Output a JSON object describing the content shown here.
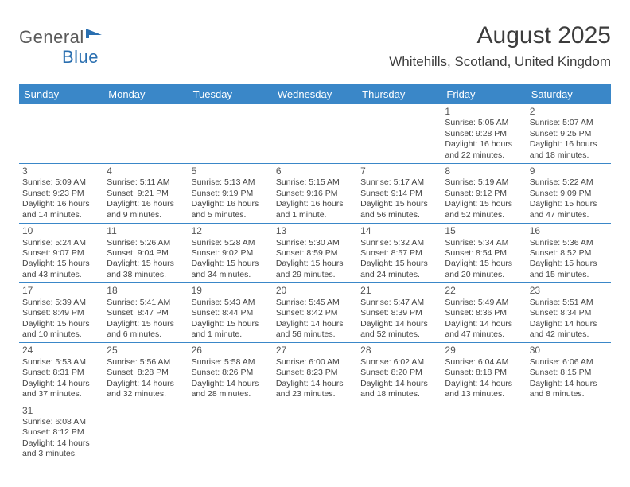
{
  "logo": {
    "text1": "General",
    "text2": "Blue",
    "icon_color": "#2a6fb0"
  },
  "title": "August 2025",
  "location": "Whitehills, Scotland, United Kingdom",
  "header_bg": "#3a87c8",
  "header_text_color": "#ffffff",
  "grid_line_color": "#3a87c8",
  "text_color": "#444444",
  "daynum_color": "#555555",
  "cell_fontsize": 10.5,
  "weekdays": [
    "Sunday",
    "Monday",
    "Tuesday",
    "Wednesday",
    "Thursday",
    "Friday",
    "Saturday"
  ],
  "weeks": [
    [
      null,
      null,
      null,
      null,
      null,
      {
        "n": "1",
        "sr": "Sunrise: 5:05 AM",
        "ss": "Sunset: 9:28 PM",
        "d1": "Daylight: 16 hours",
        "d2": "and 22 minutes."
      },
      {
        "n": "2",
        "sr": "Sunrise: 5:07 AM",
        "ss": "Sunset: 9:25 PM",
        "d1": "Daylight: 16 hours",
        "d2": "and 18 minutes."
      }
    ],
    [
      {
        "n": "3",
        "sr": "Sunrise: 5:09 AM",
        "ss": "Sunset: 9:23 PM",
        "d1": "Daylight: 16 hours",
        "d2": "and 14 minutes."
      },
      {
        "n": "4",
        "sr": "Sunrise: 5:11 AM",
        "ss": "Sunset: 9:21 PM",
        "d1": "Daylight: 16 hours",
        "d2": "and 9 minutes."
      },
      {
        "n": "5",
        "sr": "Sunrise: 5:13 AM",
        "ss": "Sunset: 9:19 PM",
        "d1": "Daylight: 16 hours",
        "d2": "and 5 minutes."
      },
      {
        "n": "6",
        "sr": "Sunrise: 5:15 AM",
        "ss": "Sunset: 9:16 PM",
        "d1": "Daylight: 16 hours",
        "d2": "and 1 minute."
      },
      {
        "n": "7",
        "sr": "Sunrise: 5:17 AM",
        "ss": "Sunset: 9:14 PM",
        "d1": "Daylight: 15 hours",
        "d2": "and 56 minutes."
      },
      {
        "n": "8",
        "sr": "Sunrise: 5:19 AM",
        "ss": "Sunset: 9:12 PM",
        "d1": "Daylight: 15 hours",
        "d2": "and 52 minutes."
      },
      {
        "n": "9",
        "sr": "Sunrise: 5:22 AM",
        "ss": "Sunset: 9:09 PM",
        "d1": "Daylight: 15 hours",
        "d2": "and 47 minutes."
      }
    ],
    [
      {
        "n": "10",
        "sr": "Sunrise: 5:24 AM",
        "ss": "Sunset: 9:07 PM",
        "d1": "Daylight: 15 hours",
        "d2": "and 43 minutes."
      },
      {
        "n": "11",
        "sr": "Sunrise: 5:26 AM",
        "ss": "Sunset: 9:04 PM",
        "d1": "Daylight: 15 hours",
        "d2": "and 38 minutes."
      },
      {
        "n": "12",
        "sr": "Sunrise: 5:28 AM",
        "ss": "Sunset: 9:02 PM",
        "d1": "Daylight: 15 hours",
        "d2": "and 34 minutes."
      },
      {
        "n": "13",
        "sr": "Sunrise: 5:30 AM",
        "ss": "Sunset: 8:59 PM",
        "d1": "Daylight: 15 hours",
        "d2": "and 29 minutes."
      },
      {
        "n": "14",
        "sr": "Sunrise: 5:32 AM",
        "ss": "Sunset: 8:57 PM",
        "d1": "Daylight: 15 hours",
        "d2": "and 24 minutes."
      },
      {
        "n": "15",
        "sr": "Sunrise: 5:34 AM",
        "ss": "Sunset: 8:54 PM",
        "d1": "Daylight: 15 hours",
        "d2": "and 20 minutes."
      },
      {
        "n": "16",
        "sr": "Sunrise: 5:36 AM",
        "ss": "Sunset: 8:52 PM",
        "d1": "Daylight: 15 hours",
        "d2": "and 15 minutes."
      }
    ],
    [
      {
        "n": "17",
        "sr": "Sunrise: 5:39 AM",
        "ss": "Sunset: 8:49 PM",
        "d1": "Daylight: 15 hours",
        "d2": "and 10 minutes."
      },
      {
        "n": "18",
        "sr": "Sunrise: 5:41 AM",
        "ss": "Sunset: 8:47 PM",
        "d1": "Daylight: 15 hours",
        "d2": "and 6 minutes."
      },
      {
        "n": "19",
        "sr": "Sunrise: 5:43 AM",
        "ss": "Sunset: 8:44 PM",
        "d1": "Daylight: 15 hours",
        "d2": "and 1 minute."
      },
      {
        "n": "20",
        "sr": "Sunrise: 5:45 AM",
        "ss": "Sunset: 8:42 PM",
        "d1": "Daylight: 14 hours",
        "d2": "and 56 minutes."
      },
      {
        "n": "21",
        "sr": "Sunrise: 5:47 AM",
        "ss": "Sunset: 8:39 PM",
        "d1": "Daylight: 14 hours",
        "d2": "and 52 minutes."
      },
      {
        "n": "22",
        "sr": "Sunrise: 5:49 AM",
        "ss": "Sunset: 8:36 PM",
        "d1": "Daylight: 14 hours",
        "d2": "and 47 minutes."
      },
      {
        "n": "23",
        "sr": "Sunrise: 5:51 AM",
        "ss": "Sunset: 8:34 PM",
        "d1": "Daylight: 14 hours",
        "d2": "and 42 minutes."
      }
    ],
    [
      {
        "n": "24",
        "sr": "Sunrise: 5:53 AM",
        "ss": "Sunset: 8:31 PM",
        "d1": "Daylight: 14 hours",
        "d2": "and 37 minutes."
      },
      {
        "n": "25",
        "sr": "Sunrise: 5:56 AM",
        "ss": "Sunset: 8:28 PM",
        "d1": "Daylight: 14 hours",
        "d2": "and 32 minutes."
      },
      {
        "n": "26",
        "sr": "Sunrise: 5:58 AM",
        "ss": "Sunset: 8:26 PM",
        "d1": "Daylight: 14 hours",
        "d2": "and 28 minutes."
      },
      {
        "n": "27",
        "sr": "Sunrise: 6:00 AM",
        "ss": "Sunset: 8:23 PM",
        "d1": "Daylight: 14 hours",
        "d2": "and 23 minutes."
      },
      {
        "n": "28",
        "sr": "Sunrise: 6:02 AM",
        "ss": "Sunset: 8:20 PM",
        "d1": "Daylight: 14 hours",
        "d2": "and 18 minutes."
      },
      {
        "n": "29",
        "sr": "Sunrise: 6:04 AM",
        "ss": "Sunset: 8:18 PM",
        "d1": "Daylight: 14 hours",
        "d2": "and 13 minutes."
      },
      {
        "n": "30",
        "sr": "Sunrise: 6:06 AM",
        "ss": "Sunset: 8:15 PM",
        "d1": "Daylight: 14 hours",
        "d2": "and 8 minutes."
      }
    ],
    [
      {
        "n": "31",
        "sr": "Sunrise: 6:08 AM",
        "ss": "Sunset: 8:12 PM",
        "d1": "Daylight: 14 hours",
        "d2": "and 3 minutes."
      },
      null,
      null,
      null,
      null,
      null,
      null
    ]
  ]
}
